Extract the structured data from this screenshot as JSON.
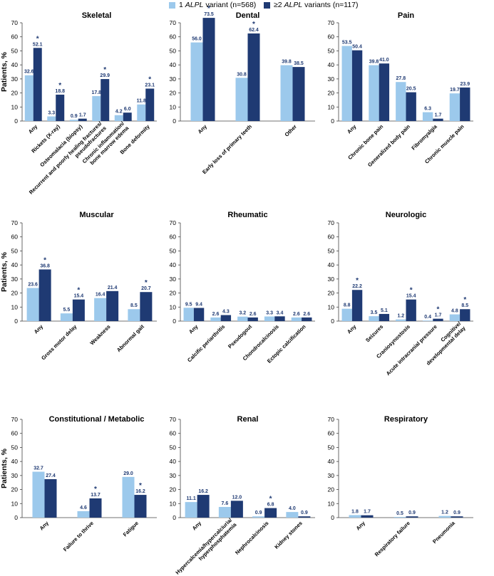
{
  "legend": {
    "series1": {
      "pre": "1 ",
      "em": "ALPL",
      "post": " variant (n=568)"
    },
    "series2": {
      "pre": "≥2 ",
      "em": "ALPL",
      "post": " variants (n=117)"
    }
  },
  "colors": {
    "series1": "#9cc9ec",
    "series2": "#1f3a73",
    "value_label": "#1f3a73",
    "axis": "#444444",
    "significance": "#1f3a73"
  },
  "ylabel": "Patients, %",
  "significance_marker": "*",
  "chart_data": [
    {
      "type": "bar",
      "title": "Skeletal",
      "categories": [
        "Any",
        "Rickets (X-ray)",
        "Osteomalacia (biopsy)",
        "Recurrent and poorly healing fractures/ pseudofractures",
        "Chronic inflammation/ bone marrow edema",
        "Bone deformity"
      ],
      "series": [
        {
          "name": "1 ALPL variant (n=568)",
          "values": [
            32.6,
            3.3,
            0.9,
            17.8,
            4.2,
            11.8
          ]
        },
        {
          "name": "≥2 ALPL variants (n=117)",
          "values": [
            52.1,
            18.8,
            1.7,
            29.9,
            6.0,
            23.1
          ]
        }
      ],
      "significant": [
        true,
        true,
        false,
        true,
        false,
        true
      ],
      "ylabel": "Patients, %",
      "ylim": [
        0,
        70
      ]
    },
    {
      "type": "bar",
      "title": "Dental",
      "categories": [
        "Any",
        "Early loss of primary teeth",
        "Other"
      ],
      "series": [
        {
          "name": "1 ALPL variant (n=568)",
          "values": [
            56.0,
            30.8,
            39.8
          ]
        },
        {
          "name": "≥2 ALPL variants (n=117)",
          "values": [
            73.5,
            62.4,
            38.5
          ]
        }
      ],
      "significant": [
        true,
        true,
        false
      ],
      "ylim": [
        0,
        70
      ]
    },
    {
      "type": "bar",
      "title": "Pain",
      "categories": [
        "Any",
        "Chronic bone pain",
        "Generalized body pain",
        "Fibromyalgia",
        "Chronic muscle pain"
      ],
      "series": [
        {
          "name": "1 ALPL variant (n=568)",
          "values": [
            53.5,
            39.8,
            27.8,
            6.3,
            19.7
          ]
        },
        {
          "name": "≥2 ALPL variants (n=117)",
          "values": [
            50.4,
            41.0,
            20.5,
            1.7,
            23.9
          ]
        }
      ],
      "significant": [
        false,
        false,
        false,
        false,
        false
      ],
      "ylim": [
        0,
        70
      ]
    },
    {
      "type": "bar",
      "title": "Muscular",
      "categories": [
        "Any",
        "Gross motor delay",
        "Weakness",
        "Abnormal gait"
      ],
      "series": [
        {
          "name": "1 ALPL variant (n=568)",
          "values": [
            23.6,
            5.5,
            16.4,
            8.5
          ]
        },
        {
          "name": "≥2 ALPL variants (n=117)",
          "values": [
            36.8,
            15.4,
            21.4,
            20.7
          ]
        }
      ],
      "significant": [
        true,
        true,
        false,
        true
      ],
      "ylabel": "Patients, %",
      "ylim": [
        0,
        70
      ]
    },
    {
      "type": "bar",
      "title": "Rheumatic",
      "categories": [
        "Any",
        "Calcific periarthritis",
        "Pseudogout",
        "Chondrocalcinosis",
        "Ectopic calcification"
      ],
      "series": [
        {
          "name": "1 ALPL variant (n=568)",
          "values": [
            9.5,
            2.6,
            3.2,
            3.3,
            2.6
          ]
        },
        {
          "name": "≥2 ALPL variants (n=117)",
          "values": [
            9.4,
            4.3,
            2.6,
            3.4,
            2.6
          ]
        }
      ],
      "significant": [
        false,
        false,
        false,
        false,
        false
      ],
      "ylim": [
        0,
        70
      ]
    },
    {
      "type": "bar",
      "title": "Neurologic",
      "categories": [
        "Any",
        "Seizures",
        "Craniosynostosis",
        "Acute intracranial pressure",
        "Cognitive/ developmental delay"
      ],
      "series": [
        {
          "name": "1 ALPL variant (n=568)",
          "values": [
            8.8,
            3.5,
            1.2,
            0.4,
            4.8
          ]
        },
        {
          "name": "≥2 ALPL variants (n=117)",
          "values": [
            22.2,
            5.1,
            15.4,
            1.7,
            8.5
          ]
        }
      ],
      "significant": [
        true,
        false,
        true,
        true,
        true
      ],
      "ylim": [
        0,
        70
      ]
    },
    {
      "type": "bar",
      "title": "Constitutional / Metabolic",
      "categories": [
        "Any",
        "Failure to thrive",
        "Fatigue"
      ],
      "series": [
        {
          "name": "1 ALPL variant (n=568)",
          "values": [
            32.7,
            4.6,
            29.0
          ]
        },
        {
          "name": "≥2 ALPL variants (n=117)",
          "values": [
            27.4,
            13.7,
            16.2
          ]
        }
      ],
      "significant": [
        false,
        true,
        true
      ],
      "ylabel": "Patients, %",
      "ylim": [
        0,
        70
      ]
    },
    {
      "type": "bar",
      "title": "Renal",
      "categories": [
        "Any",
        "Hypercalcemia/hypercalciuria/ hyperphosphatemia",
        "Nephrocalcinosis",
        "Kidney stones"
      ],
      "series": [
        {
          "name": "1 ALPL variant (n=568)",
          "values": [
            11.1,
            7.6,
            0.9,
            4.0
          ]
        },
        {
          "name": "≥2 ALPL variants (n=117)",
          "values": [
            16.2,
            12.0,
            6.8,
            0.9
          ]
        }
      ],
      "significant": [
        false,
        false,
        true,
        false
      ],
      "ylim": [
        0,
        70
      ]
    },
    {
      "type": "bar",
      "title": "Respiratory",
      "categories": [
        "Any",
        "Respiratory failure",
        "Pneumonia"
      ],
      "series": [
        {
          "name": "1 ALPL variant (n=568)",
          "values": [
            1.8,
            0.5,
            1.2
          ]
        },
        {
          "name": "≥2 ALPL variants (n=117)",
          "values": [
            1.7,
            0.9,
            0.9
          ]
        }
      ],
      "significant": [
        false,
        false,
        false
      ],
      "ylim": [
        0,
        70
      ]
    }
  ]
}
